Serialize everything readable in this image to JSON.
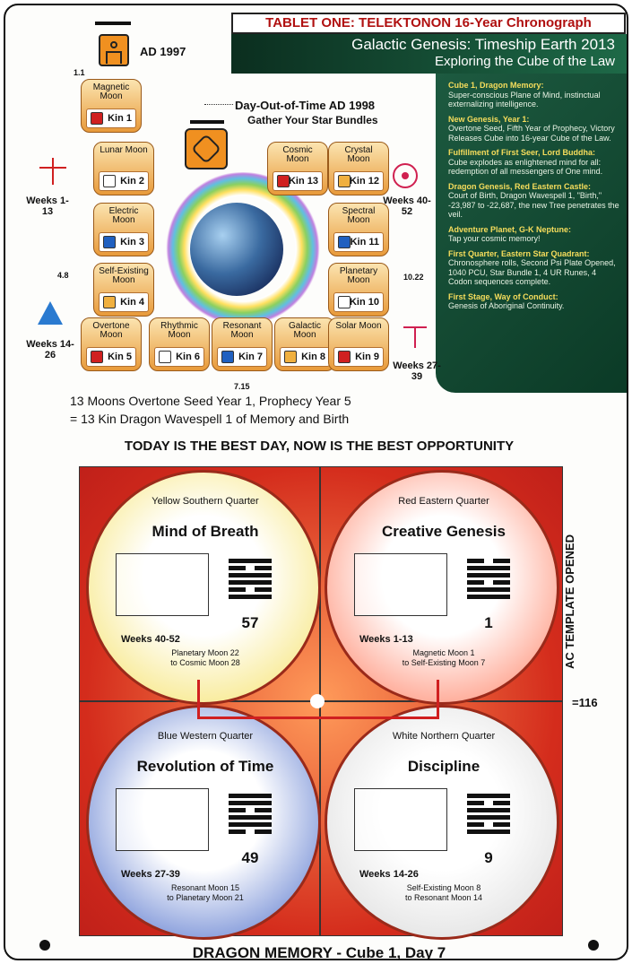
{
  "header": {
    "title": "TABLET ONE:  TELEKTONON  16-Year Chronograph",
    "line1": "Galactic Genesis: Timeship Earth 2013",
    "line2": "Exploring the Cube of the Law"
  },
  "year_label": "AD 1997",
  "corner_label": "1.1",
  "day_out": {
    "line1": "Day-Out-of-Time AD 1998",
    "line2": "Gather Your Star Bundles"
  },
  "moons": [
    {
      "name": "Magnetic Moon",
      "kin": "Kin 1"
    },
    {
      "name": "Lunar Moon",
      "kin": "Kin 2"
    },
    {
      "name": "Electric Moon",
      "kin": "Kin 3"
    },
    {
      "name": "Self-Existing Moon",
      "kin": "Kin 4"
    },
    {
      "name": "Overtone Moon",
      "kin": "Kin 5"
    },
    {
      "name": "Rhythmic Moon",
      "kin": "Kin 6"
    },
    {
      "name": "Resonant Moon",
      "kin": "Kin 7"
    },
    {
      "name": "Galactic Moon",
      "kin": "Kin 8"
    },
    {
      "name": "Solar Moon",
      "kin": "Kin 9"
    },
    {
      "name": "Planetary Moon",
      "kin": "Kin 10"
    },
    {
      "name": "Spectral Moon",
      "kin": "Kin 11"
    },
    {
      "name": "Crystal Moon",
      "kin": "Kin 12"
    },
    {
      "name": "Cosmic Moon",
      "kin": "Kin 13"
    }
  ],
  "weeks": {
    "w1": "Weeks 1-13",
    "w2": "Weeks 14-26",
    "w3": "Weeks 27-39",
    "w4": "Weeks 40-52"
  },
  "markers": {
    "m48": "4.8",
    "m1022": "10.22",
    "m715": "7.15"
  },
  "caption1": "13 Moons Overtone Seed Year 1, Prophecy Year 5",
  "caption2": "= 13 Kin Dragon Wavespell 1 of Memory and Birth",
  "green_panel": [
    {
      "head": "Cube 1, Dragon Memory:",
      "body": "Super-conscious Plane of Mind, instinctual externalizing intelligence."
    },
    {
      "head": "New Genesis, Year 1:",
      "body": "Overtone Seed, Fifth Year of Prophecy, Victory Releases Cube into 16-year Cube of the Law."
    },
    {
      "head": "Fulfillment of First Seer, Lord Buddha:",
      "body": "Cube explodes as enlightened mind for all: redemption of all messengers of One mind."
    },
    {
      "head": "Dragon Genesis, Red Eastern Castle:",
      "body": "Court of Birth, Dragon Wavespell 1, \"Birth,\" -23,987 to -22,687, the new Tree penetrates the veil."
    },
    {
      "head": "Adventure Planet, G-K Neptune:",
      "body": "Tap your cosmic memory!"
    },
    {
      "head": "First Quarter, Eastern Star Quadrant:",
      "body": "Chronosphere rolls, Second Psi Plate Opened, 1040 PCU, Star Bundle 1, 4 UR Runes, 4 Codon sequences complete."
    },
    {
      "head": "First Stage, Way of Conduct:",
      "body": "Genesis of Aboriginal Continuity."
    }
  ],
  "banner": "TODAY IS THE BEST DAY, NOW IS THE BEST OPPORTUNITY",
  "side_label": "AC TEMPLATE OPENED",
  "side_value": "=116",
  "quarters": [
    {
      "sub": "Yellow Southern Quarter",
      "title": "Mind of Breath",
      "num": "57",
      "weeks": "Weeks 40-52",
      "r1": "Planetary Moon 22",
      "r2": "to Cosmic Moon 28",
      "color": "#f5e060"
    },
    {
      "sub": "Red Eastern Quarter",
      "title": "Creative Genesis",
      "num": "1",
      "weeks": "Weeks 1-13",
      "r1": "Magnetic Moon 1",
      "r2": "to Self-Existing Moon 7",
      "color": "#ff7a5c"
    },
    {
      "sub": "Blue Western Quarter",
      "title": "Revolution of Time",
      "num": "49",
      "weeks": "Weeks 27-39",
      "r1": "Resonant Moon 15",
      "r2": "to Planetary Moon 21",
      "color": "#4668c8"
    },
    {
      "sub": "White Northern Quarter",
      "title": "Discipline",
      "num": "9",
      "weeks": "Weeks 14-26",
      "r1": "Self-Existing Moon 8",
      "r2": "to Resonant Moon 14",
      "color": "#d8d8d8"
    }
  ],
  "footer": "DRAGON MEMORY - Cube 1, Day 7",
  "colors": {
    "moon": "#f2b060",
    "green": "#14503a",
    "red": "#d42c1c"
  }
}
